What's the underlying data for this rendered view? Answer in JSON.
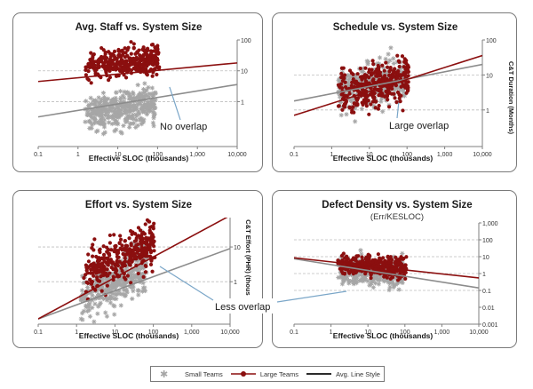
{
  "chart_data": [
    {
      "type": "scatter",
      "title": "Avg. Staff vs. System Size",
      "subtitle": "",
      "xlabel": "Effective SLOC (thousands)",
      "ylabel": "",
      "x_scale": "log",
      "y_scale": "log",
      "xlim": [
        0.1,
        10000
      ],
      "ylim": [
        0.035,
        100
      ],
      "xticks": [
        "0.1",
        "1",
        "10",
        "100",
        "1,000",
        "10,000"
      ],
      "yticks": [
        {
          "value": 1,
          "label": "1"
        },
        {
          "value": 10,
          "label": "10"
        },
        {
          "value": 100,
          "label": "100"
        }
      ],
      "gridlines": [
        1,
        10
      ],
      "series": [
        {
          "name": "Small Teams",
          "style": "star",
          "color": "#a6a6a6",
          "x_range": [
            1.5,
            90
          ],
          "y_center": 0.55,
          "y_spread": 0.3,
          "slope": 0.22,
          "count": 380
        },
        {
          "name": "Large Teams",
          "style": "dot",
          "color": "#8b0f0f",
          "x_range": [
            1.5,
            110
          ],
          "y_center": 18,
          "y_spread": 0.22,
          "slope": 0.12,
          "count": 360
        }
      ],
      "trend_lines": [
        {
          "name": "Small Teams",
          "color": "#8c8c8c",
          "x": [
            0.1,
            10000
          ],
          "y": [
            0.32,
            3.6
          ]
        },
        {
          "name": "Large Teams",
          "color": "#8b0f0f",
          "x": [
            0.1,
            10000
          ],
          "y": [
            4.5,
            18
          ]
        }
      ],
      "annotation": {
        "text": "No overlap",
        "arrow_to": {
          "x": 200,
          "y": 3.0
        }
      }
    },
    {
      "type": "scatter",
      "title": "Schedule vs. System Size",
      "subtitle": "",
      "xlabel": "Effective SLOC (thousands)",
      "ylabel": "C&T Duration (Months)",
      "x_scale": "log",
      "y_scale": "log",
      "xlim": [
        0.1,
        10000
      ],
      "ylim": [
        0.09,
        100
      ],
      "xticks": [
        "0.1",
        "1",
        "10",
        "100",
        "1,000",
        "10,000"
      ],
      "yticks": [
        {
          "value": 1,
          "label": "1"
        },
        {
          "value": 10,
          "label": "10"
        },
        {
          "value": 100,
          "label": "100"
        }
      ],
      "gridlines": [
        1,
        10
      ],
      "series": [
        {
          "name": "Small Teams",
          "style": "star",
          "color": "#a6a6a6",
          "x_range": [
            1.5,
            90
          ],
          "y_center": 5.5,
          "y_spread": 0.32,
          "slope": 0.2,
          "count": 380
        },
        {
          "name": "Large Teams",
          "style": "dot",
          "color": "#8b0f0f",
          "x_range": [
            1.5,
            110
          ],
          "y_center": 5.0,
          "y_spread": 0.3,
          "slope": 0.25,
          "count": 360
        }
      ],
      "trend_lines": [
        {
          "name": "Small Teams",
          "color": "#8c8c8c",
          "x": [
            0.1,
            10000
          ],
          "y": [
            1.8,
            20
          ]
        },
        {
          "name": "Large Teams",
          "color": "#8b0f0f",
          "x": [
            0.1,
            10000
          ],
          "y": [
            0.7,
            36
          ]
        }
      ],
      "annotation": {
        "text": "Large overlap",
        "arrow_to": {
          "x": 60,
          "y": 1.6
        }
      }
    },
    {
      "type": "scatter",
      "title": "Effort vs. System Size",
      "subtitle": "",
      "xlabel": "Effective SLOC (thousands)",
      "ylabel": "C&T Effort (PHR) (thous",
      "x_scale": "log",
      "y_scale": "log",
      "xlim": [
        0.1,
        10000
      ],
      "ylim": [
        0.06,
        70
      ],
      "xticks": [
        "0.1",
        "1",
        "10",
        "100",
        "1,000",
        "10,000"
      ],
      "yticks": [
        {
          "value": 1,
          "label": "1"
        },
        {
          "value": 10,
          "label": "10"
        }
      ],
      "gridlines": [
        1,
        10
      ],
      "series": [
        {
          "name": "Small Teams",
          "style": "star",
          "color": "#a6a6a6",
          "x_range": [
            1.3,
            70
          ],
          "y_center": 0.9,
          "y_spread": 0.34,
          "slope": 0.6,
          "count": 380
        },
        {
          "name": "Large Teams",
          "style": "dot",
          "color": "#8b0f0f",
          "x_range": [
            1.5,
            110
          ],
          "y_center": 5.0,
          "y_spread": 0.33,
          "slope": 0.55,
          "count": 360
        }
      ],
      "trend_lines": [
        {
          "name": "Small Teams",
          "color": "#8c8c8c",
          "x": [
            0.1,
            10000
          ],
          "y": [
            0.085,
            9
          ]
        },
        {
          "name": "Large Teams",
          "color": "#8b0f0f",
          "x": [
            0.1,
            10000
          ],
          "y": [
            0.085,
            80
          ]
        }
      ],
      "annotation": {
        "text": "Less overlap",
        "arrow_to": {
          "x": 90,
          "y": 0.5
        }
      }
    },
    {
      "type": "scatter",
      "title": "Defect Density vs. System Size",
      "subtitle": "(Err/KESLOC)",
      "xlabel": "Effective SLOC (thousands)",
      "ylabel": "",
      "x_scale": "log",
      "y_scale": "log",
      "xlim": [
        0.1,
        10000
      ],
      "ylim": [
        0.001,
        1000
      ],
      "xticks": [
        "0.1",
        "1",
        "10",
        "100",
        "1,000",
        "10,000"
      ],
      "yticks": [
        {
          "value": 0.001,
          "label": "0.001"
        },
        {
          "value": 0.01,
          "label": "0.01"
        },
        {
          "value": 0.1,
          "label": "0.1"
        },
        {
          "value": 1,
          "label": "1"
        },
        {
          "value": 10,
          "label": "10"
        },
        {
          "value": 100,
          "label": "100"
        },
        {
          "value": 1000,
          "label": "1,000"
        }
      ],
      "gridlines": [
        0.1,
        1,
        10,
        100
      ],
      "series": [
        {
          "name": "Small Teams",
          "style": "star",
          "color": "#a6a6a6",
          "x_range": [
            1.5,
            90
          ],
          "y_center": 1.3,
          "y_spread": 0.38,
          "slope": -0.2,
          "count": 380
        },
        {
          "name": "Large Teams",
          "style": "dot",
          "color": "#8b0f0f",
          "x_range": [
            1.5,
            110
          ],
          "y_center": 2.6,
          "y_spread": 0.28,
          "slope": -0.15,
          "count": 360
        }
      ],
      "trend_lines": [
        {
          "name": "Small Teams",
          "color": "#8c8c8c",
          "x": [
            0.1,
            10000
          ],
          "y": [
            7.5,
            0.14
          ]
        },
        {
          "name": "Large Teams",
          "color": "#8b0f0f",
          "x": [
            0.1,
            10000
          ],
          "y": [
            8.5,
            0.55
          ]
        }
      ],
      "annotation": {
        "text": "",
        "arrow_to": {
          "x": 8,
          "y": 0.08
        }
      }
    }
  ],
  "legend": {
    "items": [
      {
        "label": "Small Teams",
        "symbol": "star",
        "color": "#a6a6a6"
      },
      {
        "label": "Large Teams",
        "symbol": "dot-line",
        "color": "#8b0f0f"
      },
      {
        "label": "Avg. Line Style",
        "symbol": "line",
        "color": "#2b2b2b"
      }
    ]
  },
  "colors": {
    "arrow": "#7aa6c8",
    "grid": "#bdbdbd",
    "axis": "#7f7f7f"
  }
}
